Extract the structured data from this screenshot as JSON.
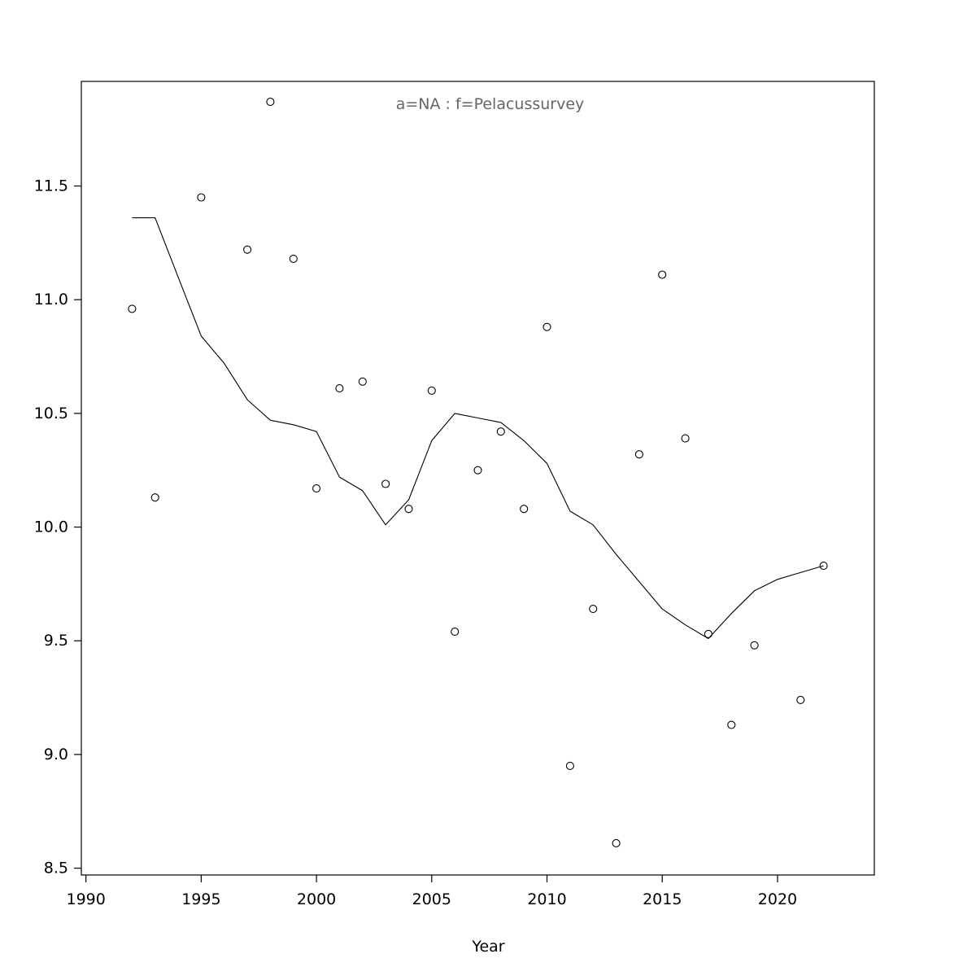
{
  "figure": {
    "background": "#ffffff",
    "axis_color": "#000000",
    "title_color": "#666666",
    "point_color": "#000000",
    "line_color": "#000000"
  },
  "chart_data": {
    "type": "scatter",
    "title": "a=NA  :  f=Pelacussurvey",
    "xlabel": "Year",
    "ylabel": "",
    "xlim": [
      1989.8,
      2024.2
    ],
    "ylim": [
      8.47,
      11.96
    ],
    "grid": false,
    "legend": "none",
    "x_ticks": [
      1990,
      1995,
      2000,
      2005,
      2010,
      2015,
      2020
    ],
    "x_tick_labels": [
      "1990",
      "1995",
      "2000",
      "2005",
      "2010",
      "2015",
      "2020"
    ],
    "y_ticks": [
      8.5,
      9.0,
      9.5,
      10.0,
      10.5,
      11.0,
      11.5
    ],
    "y_tick_labels": [
      "8.5",
      "9.0",
      "9.5",
      "10.0",
      "10.5",
      "11.0",
      "11.5"
    ],
    "points": {
      "name": "observations",
      "x": [
        1992,
        1993,
        1995,
        1997,
        1998,
        1999,
        2000,
        2001,
        2002,
        2003,
        2004,
        2005,
        2006,
        2007,
        2008,
        2009,
        2010,
        2011,
        2012,
        2013,
        2014,
        2015,
        2016,
        2017,
        2018,
        2019,
        2021,
        2022
      ],
      "y": [
        10.96,
        10.13,
        11.45,
        11.22,
        11.87,
        11.18,
        10.17,
        10.61,
        10.64,
        10.19,
        10.08,
        10.6,
        9.54,
        10.25,
        10.42,
        10.08,
        10.88,
        8.95,
        9.64,
        8.61,
        10.32,
        11.11,
        10.39,
        9.53,
        9.13,
        9.48,
        9.24,
        9.83
      ],
      "marker": "open-circle"
    },
    "line": {
      "name": "smoothed-trend",
      "x": [
        1992,
        1993,
        1994,
        1995,
        1996,
        1997,
        1998,
        1999,
        2000,
        2001,
        2002,
        2003,
        2004,
        2005,
        2006,
        2007,
        2008,
        2009,
        2010,
        2011,
        2012,
        2013,
        2014,
        2015,
        2016,
        2017,
        2018,
        2019,
        2020,
        2021,
        2022
      ],
      "y": [
        11.36,
        11.36,
        11.1,
        10.84,
        10.72,
        10.56,
        10.47,
        10.45,
        10.42,
        10.22,
        10.16,
        10.01,
        10.12,
        10.38,
        10.5,
        10.48,
        10.46,
        10.38,
        10.28,
        10.07,
        10.01,
        9.88,
        9.76,
        9.64,
        9.57,
        9.51,
        9.62,
        9.72,
        9.77,
        9.8,
        9.83
      ]
    }
  }
}
